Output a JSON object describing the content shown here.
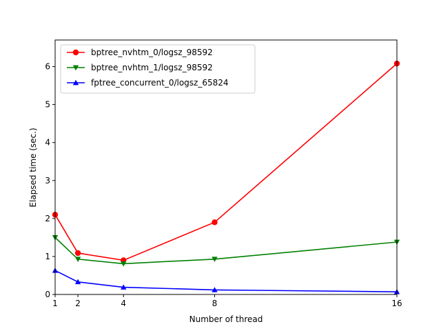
{
  "chart_data": {
    "type": "line",
    "title": "",
    "xlabel": "Number of thread",
    "ylabel": "Elapsed time (sec.)",
    "xlim": [
      1,
      16
    ],
    "ylim": [
      0,
      6.7
    ],
    "xticks": [
      1,
      2,
      4,
      8,
      16
    ],
    "yticks": [
      0,
      1,
      2,
      3,
      4,
      5,
      6
    ],
    "grid": false,
    "legend_position": "top-left",
    "x": [
      1,
      2,
      4,
      8,
      16
    ],
    "series": [
      {
        "name": "bptree_nvhtm_0/logsz_98592",
        "color": "#ff0000",
        "marker": "circle",
        "values": [
          2.1,
          1.09,
          0.9,
          1.9,
          6.08
        ]
      },
      {
        "name": "bptree_nvhtm_1/logsz_98592",
        "color": "#008000",
        "marker": "triangle-down",
        "values": [
          1.5,
          0.93,
          0.81,
          0.93,
          1.38
        ]
      },
      {
        "name": "fptree_concurrent_0/logsz_65824",
        "color": "#0000ff",
        "marker": "triangle-up",
        "values": [
          0.63,
          0.33,
          0.19,
          0.12,
          0.07
        ]
      }
    ]
  }
}
